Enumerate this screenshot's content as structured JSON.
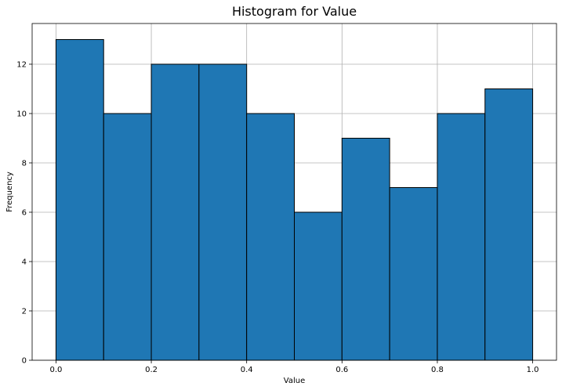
{
  "chart_data": {
    "type": "bar",
    "title": "Histogram for Value",
    "xlabel": "Value",
    "ylabel": "Frequency",
    "bin_edges": [
      0.0,
      0.1,
      0.2,
      0.3,
      0.4,
      0.5,
      0.6,
      0.7,
      0.8,
      0.9,
      1.0
    ],
    "values": [
      13,
      10,
      12,
      12,
      10,
      6,
      9,
      7,
      10,
      11
    ],
    "xlim": [
      -0.05,
      1.05
    ],
    "ylim": [
      0,
      13.65
    ],
    "x_ticks": [
      0.0,
      0.2,
      0.4,
      0.6,
      0.8,
      1.0
    ],
    "x_tick_labels": [
      "0.0",
      "0.2",
      "0.4",
      "0.6",
      "0.8",
      "1.0"
    ],
    "y_ticks": [
      0,
      2,
      4,
      6,
      8,
      10,
      12
    ],
    "y_tick_labels": [
      "0",
      "2",
      "4",
      "6",
      "8",
      "10",
      "12"
    ],
    "grid": true,
    "bar_color": "#1f77b4",
    "edge_color": "#000000",
    "grid_color": "#b0b0b0"
  }
}
